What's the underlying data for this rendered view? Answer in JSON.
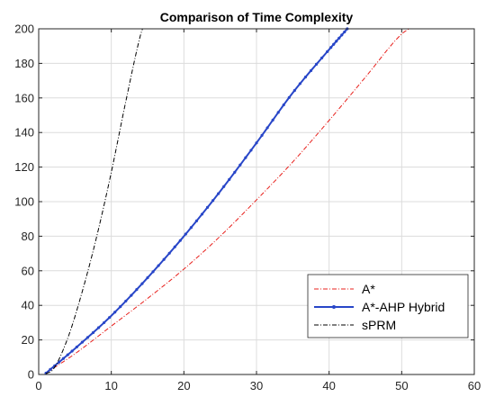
{
  "chart_data": {
    "type": "line",
    "title": "Comparison of Time Complexity",
    "xlabel": "",
    "ylabel": "",
    "xlim": [
      0,
      60
    ],
    "ylim": [
      0,
      200
    ],
    "xticks": [
      0,
      10,
      20,
      30,
      40,
      50,
      60
    ],
    "yticks": [
      0,
      20,
      40,
      60,
      80,
      100,
      120,
      140,
      160,
      180,
      200
    ],
    "grid": true,
    "legend_position": "bottom-right",
    "series": [
      {
        "name": "A*",
        "color": "#e8201c",
        "line_style": "dash-dot",
        "marker": "none",
        "x": [
          1,
          5,
          10,
          15,
          20,
          25,
          30,
          35,
          40,
          45,
          50,
          51
        ],
        "y": [
          0.8,
          12,
          28,
          44,
          61,
          80,
          101,
          123,
          147,
          172,
          197,
          200
        ]
      },
      {
        "name": "A*-AHP Hybrid",
        "color": "#2846c8",
        "line_style": "solid",
        "marker": "dot",
        "x": [
          1,
          5,
          10,
          15,
          20,
          25,
          30,
          35,
          40,
          42.5
        ],
        "y": [
          0.8,
          15,
          34,
          56,
          80,
          106,
          134,
          163,
          188,
          200
        ]
      },
      {
        "name": "sPRM",
        "color": "#000000",
        "line_style": "dash-dot",
        "marker": "none",
        "x": [
          1,
          2,
          4,
          6,
          8,
          10,
          12,
          14,
          14.3
        ],
        "y": [
          0.5,
          3,
          21,
          48,
          80,
          117,
          158,
          196,
          200
        ]
      }
    ]
  }
}
